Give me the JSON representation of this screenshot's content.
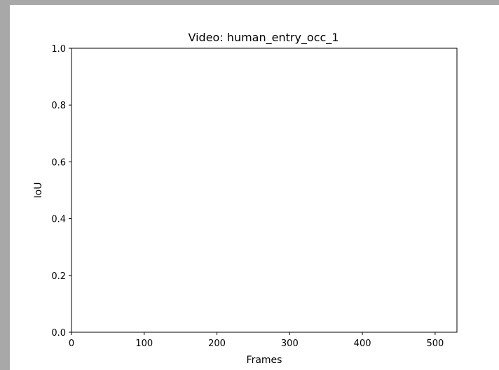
{
  "window": {
    "background": "#a8a8a8",
    "canvas_color": "#ffffff"
  },
  "chart_data": {
    "type": "line",
    "title": "Video: human_entry_occ_1",
    "xlabel": "Frames",
    "ylabel": "IoU",
    "xlim": [
      0,
      530
    ],
    "ylim": [
      0.0,
      1.0
    ],
    "xticks": [
      0,
      100,
      200,
      300,
      400,
      500
    ],
    "xtick_labels": [
      "0",
      "100",
      "200",
      "300",
      "400",
      "500"
    ],
    "yticks": [
      0.0,
      0.2,
      0.4,
      0.6,
      0.8,
      1.0
    ],
    "ytick_labels": [
      "0.0",
      "0.2",
      "0.4",
      "0.6",
      "0.8",
      "1.0"
    ],
    "grid": false,
    "series": []
  }
}
